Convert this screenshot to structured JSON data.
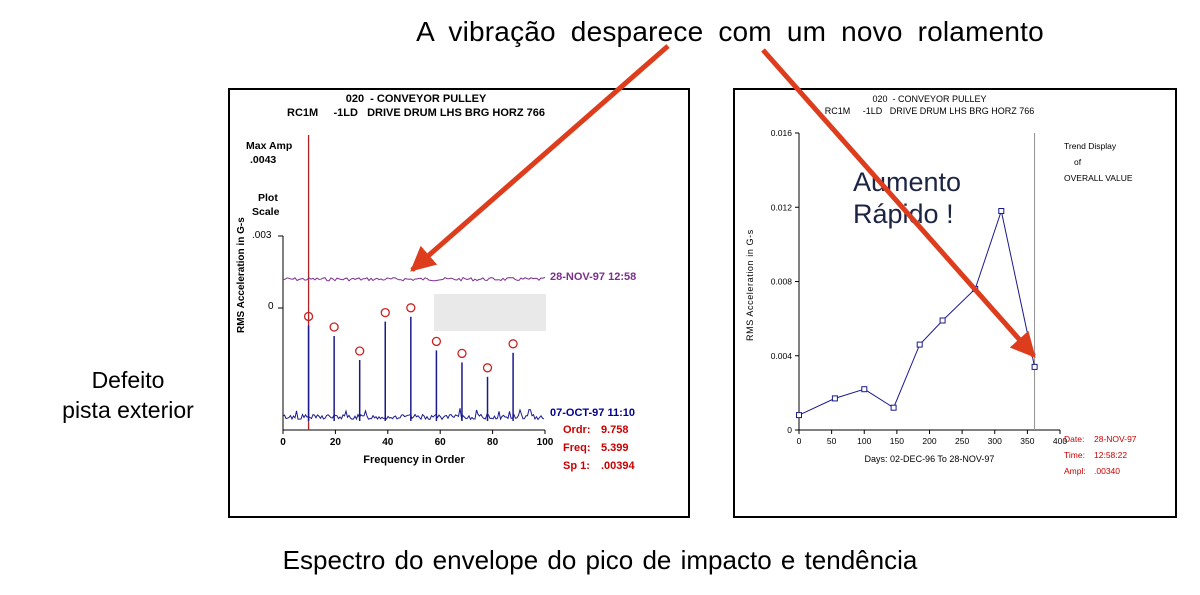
{
  "page": {
    "title": "A vibração desparece com um novo rolamento",
    "caption": "Espectro do envelope do pico de impacto e tendência",
    "side_label": {
      "line1": "Defeito",
      "line2": "pista exterior"
    }
  },
  "colors": {
    "arrow": "#dd3d1c",
    "spectrum_trace": "#1a1a8f",
    "baseline_trace": "#7b2f8e",
    "marker_red": "#cc2222",
    "readout_red": "#cc0000",
    "date_blue": "#00008b",
    "annotation_dark": "#1c2444",
    "cursor_red": "#b22222",
    "cursor_gray": "#909090",
    "erase_box_gray": "#e9e9e9"
  },
  "chart_data": [
    {
      "type": "line",
      "id": "envelope-spectrum",
      "title": "020  - CONVEYOR PULLEY",
      "subtitle": "RC1M     -1LD   DRIVE DRUM LHS BRG HORZ 766",
      "xlabel": "Frequency in Order",
      "ylabel": "RMS Acceleration in G-s",
      "xlim": [
        0,
        100
      ],
      "xticks": [
        0,
        20,
        40,
        60,
        80,
        100
      ],
      "max_amp_label": "Max Amp",
      "max_amp_value": ".0043",
      "plot_scale_label1": "Plot",
      "plot_scale_label2": "Scale",
      "scale_tick_label": ".003",
      "zero_tick_label": "0",
      "plot_scale": 0.003,
      "cursor_order": 9.758,
      "series": [
        {
          "name": "28-NOV-97 12:58",
          "style": "flat-noise",
          "level": 0.0012
        },
        {
          "name": "07-OCT-97 11:10",
          "style": "spectrum-peaks",
          "peaks": [
            {
              "order": 9.758,
              "amp": 0.00394
            },
            {
              "order": 19.52,
              "amp": 0.0035
            },
            {
              "order": 29.27,
              "amp": 0.0025
            },
            {
              "order": 39.03,
              "amp": 0.0041
            },
            {
              "order": 48.79,
              "amp": 0.0043
            },
            {
              "order": 58.55,
              "amp": 0.0029
            },
            {
              "order": 68.31,
              "amp": 0.0024
            },
            {
              "order": 78.06,
              "amp": 0.0018
            },
            {
              "order": 87.82,
              "amp": 0.0028
            }
          ]
        }
      ],
      "readout": [
        {
          "label": "Ordr:",
          "value": "9.758"
        },
        {
          "label": "Freq:",
          "value": "5.399"
        },
        {
          "label": "Sp 1:",
          "value": ".00394"
        }
      ]
    },
    {
      "type": "line",
      "id": "overall-trend",
      "title": "020  - CONVEYOR PULLEY",
      "subtitle": "RC1M     -1LD   DRIVE DRUM LHS BRG HORZ 766",
      "xlabel": "Days: 02-DEC-96 To 28-NOV-97",
      "ylabel": "RMS Acceleration in G-s",
      "xlim": [
        0,
        400
      ],
      "ylim": [
        0,
        0.016
      ],
      "xticks": [
        0,
        50,
        100,
        150,
        200,
        250,
        300,
        350,
        400
      ],
      "yticks": [
        0,
        0.004,
        0.008,
        0.012,
        0.016
      ],
      "ytick_labels": [
        "0",
        "0.004",
        "0.008",
        "0.012",
        "0.016"
      ],
      "x": [
        0,
        55,
        100,
        145,
        185,
        220,
        270,
        310,
        361
      ],
      "y": [
        0.0008,
        0.0017,
        0.0022,
        0.0012,
        0.0046,
        0.0059,
        0.0076,
        0.0118,
        0.0034
      ],
      "cursor_day": 361,
      "legend": [
        "Trend Display",
        "of",
        "OVERALL VALUE"
      ],
      "annotation_line1": "Aumento",
      "annotation_line2": "Rápido !",
      "readout": [
        {
          "label": "Date:",
          "value": "28-NOV-97"
        },
        {
          "label": "Time:",
          "value": "12:58:22"
        },
        {
          "label": "Ampl:",
          "value": ".00340"
        }
      ]
    }
  ]
}
